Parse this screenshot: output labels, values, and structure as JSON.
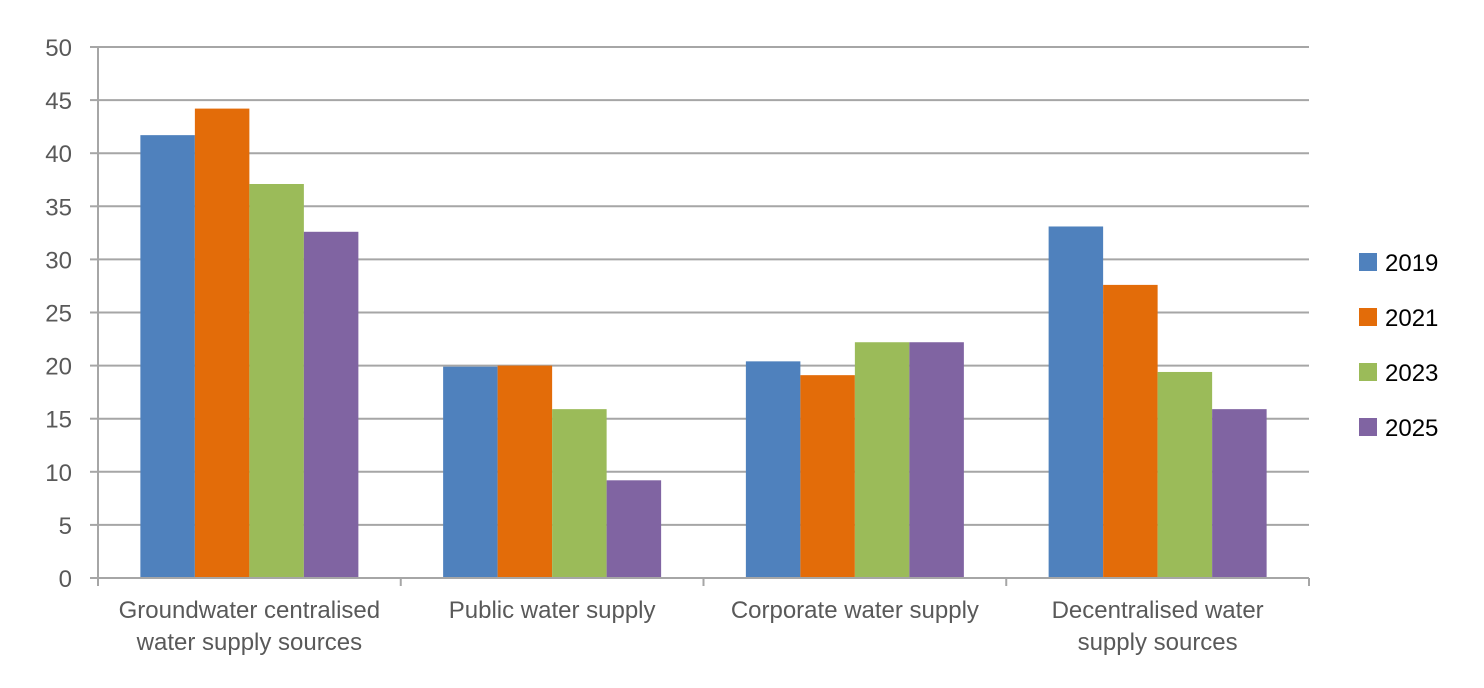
{
  "chart_data": {
    "type": "bar",
    "title": "",
    "xlabel": "",
    "ylabel": "",
    "ylim": [
      0,
      50
    ],
    "yticks": [
      0,
      5,
      10,
      15,
      20,
      25,
      30,
      35,
      40,
      45,
      50
    ],
    "grid": true,
    "legend_position": "right",
    "categories": [
      [
        "Groundwater centralised",
        "water supply sources"
      ],
      [
        "Public water supply"
      ],
      [
        "Corporate water supply"
      ],
      [
        "Decentralised water",
        "supply sources"
      ]
    ],
    "series": [
      {
        "name": "2019",
        "color": "#4F81BD",
        "values": [
          41.7,
          19.9,
          20.4,
          33.1
        ]
      },
      {
        "name": "2021",
        "color": "#E36C09",
        "values": [
          44.2,
          20.0,
          19.1,
          27.6
        ]
      },
      {
        "name": "2023",
        "color": "#9BBB59",
        "values": [
          37.1,
          15.9,
          22.2,
          19.4
        ]
      },
      {
        "name": "2025",
        "color": "#8064A2",
        "values": [
          32.6,
          9.2,
          22.2,
          15.9
        ]
      }
    ]
  }
}
